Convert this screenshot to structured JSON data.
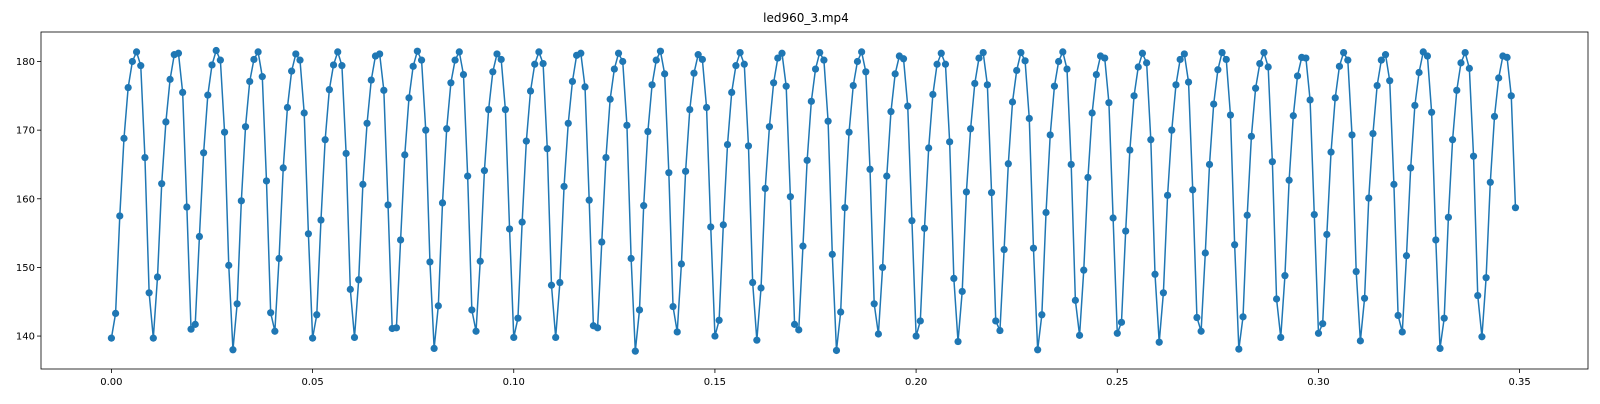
{
  "chart_data": {
    "type": "line",
    "title": "led960_3.mp4",
    "xlabel": "",
    "ylabel": "",
    "xlim": [
      -0.0175,
      0.367
    ],
    "ylim": [
      135.2,
      184.3
    ],
    "x_ticks": [
      0.0,
      0.05,
      0.1,
      0.15,
      0.2,
      0.25,
      0.3,
      0.35
    ],
    "x_tick_labels": [
      "0.00",
      "0.05",
      "0.10",
      "0.15",
      "0.20",
      "0.25",
      "0.30",
      "0.35"
    ],
    "y_ticks": [
      140,
      150,
      160,
      170,
      180
    ],
    "y_tick_labels": [
      "140",
      "150",
      "160",
      "170",
      "180"
    ],
    "grid": false,
    "legend": "none",
    "marker": "circle",
    "series": [
      {
        "color": "#1f77b4",
        "x_start": 0.0,
        "x_step": 0.0010417,
        "values": [
          139.7,
          143.3,
          157.5,
          168.8,
          176.2,
          180.0,
          181.4,
          179.4,
          166.0,
          146.3,
          139.7,
          148.6,
          162.2,
          171.2,
          177.4,
          181.0,
          181.2,
          175.5,
          158.8,
          141.0,
          141.7,
          154.5,
          166.7,
          175.1,
          179.5,
          181.6,
          180.2,
          169.7,
          150.3,
          138.0,
          144.7,
          159.7,
          170.5,
          177.1,
          180.3,
          181.4,
          177.8,
          162.6,
          143.4,
          140.7,
          151.3,
          164.5,
          173.3,
          178.6,
          181.1,
          180.2,
          172.5,
          154.9,
          139.7,
          143.1,
          156.9,
          168.6,
          175.9,
          179.5,
          181.4,
          179.4,
          166.6,
          146.8,
          139.8,
          148.2,
          162.1,
          171.0,
          177.3,
          180.8,
          181.1,
          175.8,
          159.1,
          141.1,
          141.2,
          154.0,
          166.4,
          174.7,
          179.3,
          181.5,
          180.2,
          170.0,
          150.8,
          138.2,
          144.4,
          159.4,
          170.2,
          176.9,
          180.2,
          181.4,
          178.1,
          163.3,
          143.8,
          140.7,
          150.9,
          164.1,
          173.0,
          178.5,
          181.1,
          180.3,
          173.0,
          155.6,
          139.8,
          142.6,
          156.6,
          168.4,
          175.7,
          179.6,
          181.4,
          179.7,
          167.3,
          147.4,
          139.8,
          147.8,
          161.8,
          171.0,
          177.1,
          180.9,
          181.2,
          176.3,
          159.8,
          141.5,
          141.2,
          153.7,
          166.0,
          174.5,
          178.9,
          181.2,
          180.0,
          170.7,
          151.3,
          137.8,
          143.8,
          159.0,
          169.8,
          176.6,
          180.2,
          181.5,
          178.2,
          163.8,
          144.3,
          140.6,
          150.5,
          164.0,
          173.0,
          178.3,
          181.0,
          180.3,
          173.3,
          155.9,
          140.0,
          142.3,
          156.2,
          167.9,
          175.5,
          179.4,
          181.3,
          179.6,
          167.7,
          147.8,
          139.4,
          147.0,
          161.5,
          170.5,
          176.9,
          180.5,
          181.2,
          176.4,
          160.3,
          141.7,
          140.9,
          153.1,
          165.6,
          174.2,
          178.9,
          181.3,
          180.2,
          171.3,
          151.9,
          137.9,
          143.5,
          158.7,
          169.7,
          176.5,
          180.0,
          181.4,
          178.5,
          164.3,
          144.7,
          140.3,
          150.0,
          163.3,
          172.7,
          178.2,
          180.8,
          180.4,
          173.5,
          156.8,
          140.0,
          142.2,
          155.7,
          167.4,
          175.2,
          179.6,
          181.2,
          179.6,
          168.3,
          148.4,
          139.2,
          146.5,
          161.0,
          170.2,
          176.8,
          180.5,
          181.3,
          176.6,
          160.9,
          142.2,
          140.8,
          152.6,
          165.1,
          174.1,
          178.7,
          181.3,
          180.1,
          171.7,
          152.8,
          138.0,
          143.1,
          158.0,
          169.3,
          176.4,
          180.0,
          181.4,
          178.9,
          165.0,
          145.2,
          140.1,
          149.6,
          163.1,
          172.5,
          178.1,
          180.8,
          180.5,
          174.0,
          157.2,
          140.4,
          142.0,
          155.3,
          167.1,
          175.0,
          179.2,
          181.2,
          179.8,
          168.6,
          149.0,
          139.1,
          146.3,
          160.5,
          170.0,
          176.6,
          180.3,
          181.1,
          177.0,
          161.3,
          142.7,
          140.7,
          152.1,
          165.0,
          173.8,
          178.8,
          181.3,
          180.3,
          172.2,
          153.3,
          138.1,
          142.8,
          157.6,
          169.1,
          176.1,
          179.7,
          181.3,
          179.2,
          165.4,
          145.4,
          139.8,
          148.8,
          162.7,
          172.1,
          177.9,
          180.6,
          180.5,
          174.4,
          157.7,
          140.4,
          141.8,
          154.8,
          166.8,
          174.7,
          179.3,
          181.3,
          180.2,
          169.3,
          149.4,
          139.3,
          145.5,
          160.1,
          169.5,
          176.5,
          180.2,
          181.0,
          177.2,
          162.1,
          143.0,
          140.6,
          151.7,
          164.5,
          173.6,
          178.4,
          181.4,
          180.8,
          172.6,
          154.0,
          138.2,
          142.6,
          157.3,
          168.6,
          175.8,
          179.8,
          181.3,
          179.0,
          166.2,
          145.9,
          139.9,
          148.5,
          162.4,
          172.0,
          177.6,
          180.8,
          180.6,
          175.0,
          158.7
        ]
      }
    ]
  }
}
